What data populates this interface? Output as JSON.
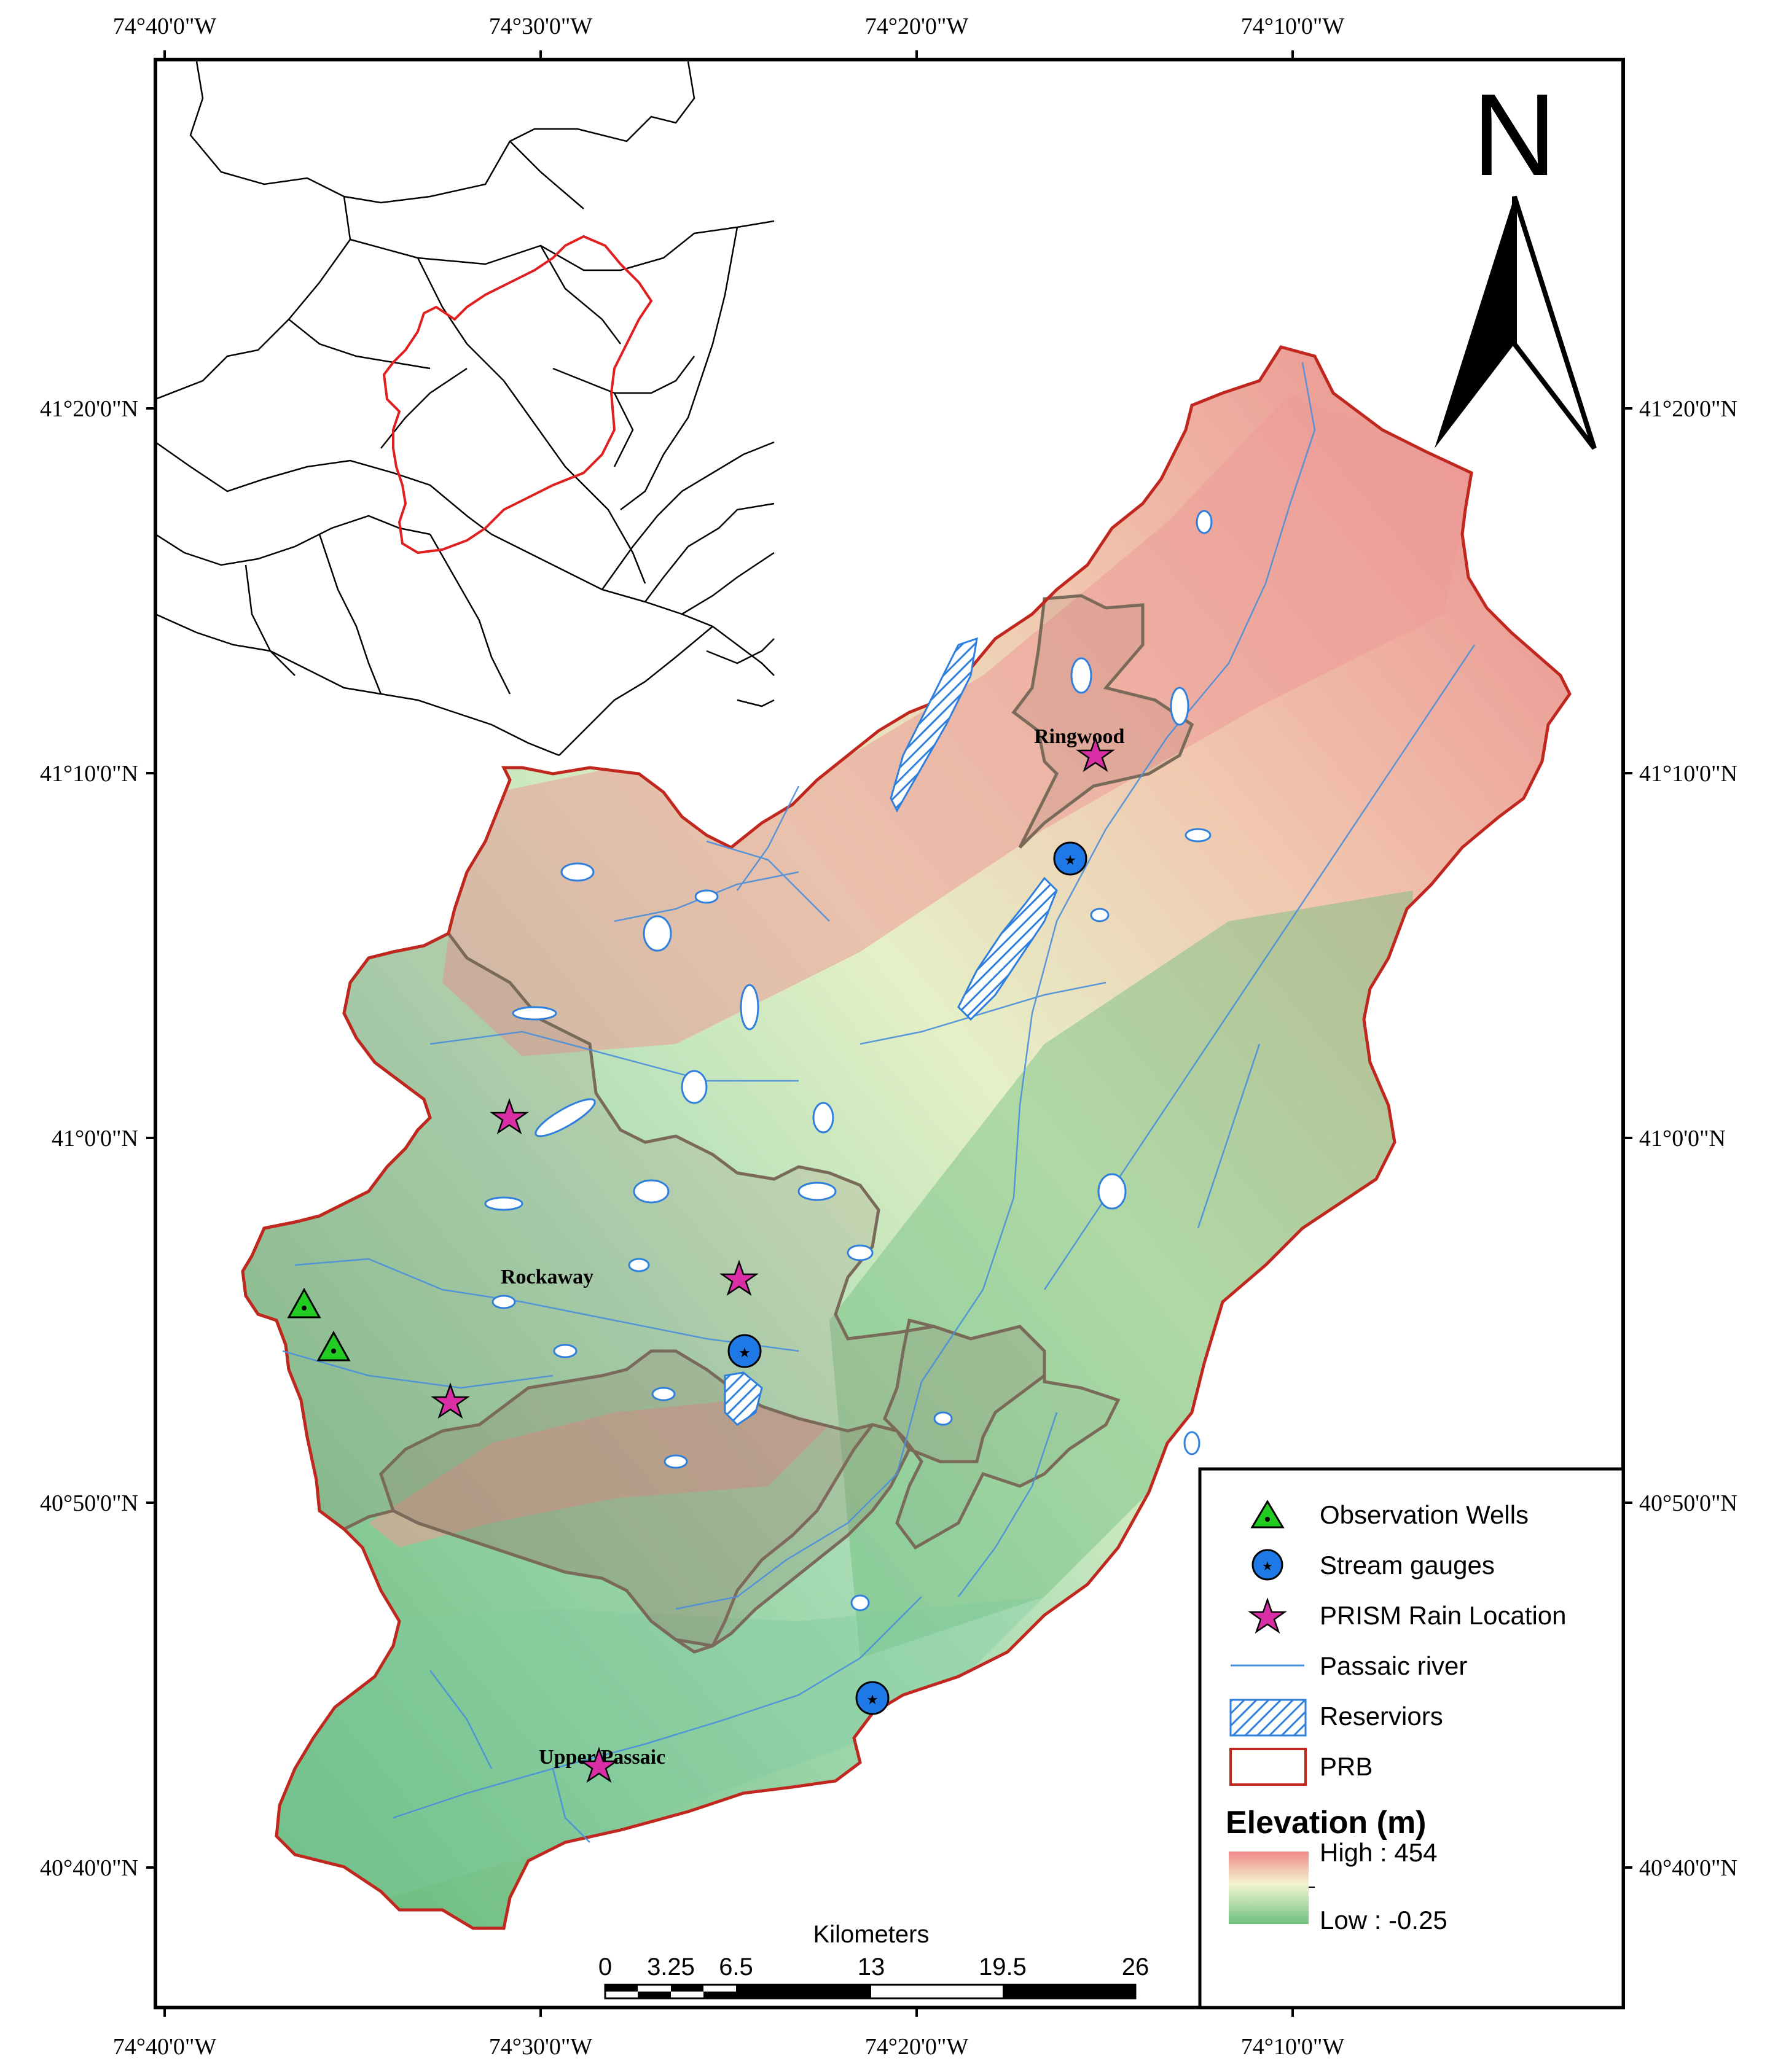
{
  "lon_labels": [
    "74°40'0\"W",
    "74°30'0\"W",
    "74°20'0\"W",
    "74°10'0\"W"
  ],
  "lat_labels": [
    "41°20'0\"N",
    "41°10'0\"N",
    "41°0'0\"N",
    "40°50'0\"N",
    "40°40'0\"N"
  ],
  "north_label": "N",
  "places": {
    "ringwood": "Ringwood",
    "rockaway": "Rockaway",
    "upper_passaic": "Upper Passaic"
  },
  "legend": {
    "items": [
      {
        "label": "Observation Wells",
        "icon": "green-triangle"
      },
      {
        "label": "Stream gauges",
        "icon": "blue-circle"
      },
      {
        "label": "PRISM Rain Location",
        "icon": "magenta-star"
      },
      {
        "label": "Passaic river",
        "icon": "blue-line"
      },
      {
        "label": "Reserviors",
        "icon": "hatched-box"
      },
      {
        "label": "PRB",
        "icon": "red-outline-box"
      }
    ],
    "elevation_title": "Elevation (m)",
    "high_label": "High : 454",
    "low_label": "Low : -0.25"
  },
  "scale_bar": {
    "unit": "Kilometers",
    "ticks": [
      "0",
      "3.25",
      "6.5",
      "13",
      "19.5",
      "26"
    ]
  },
  "colors": {
    "high": "#e98a8a",
    "mid": "#e9f3c8",
    "low": "#6fc17f",
    "watershed_border": "#c0281f",
    "subwatershed_border": "#7a6a5a",
    "river": "#4a8fdc",
    "reservoir": "#2f7fdc",
    "well": "#22cc22",
    "gauge": "#1e78e6",
    "rain": "#d92ea6"
  }
}
